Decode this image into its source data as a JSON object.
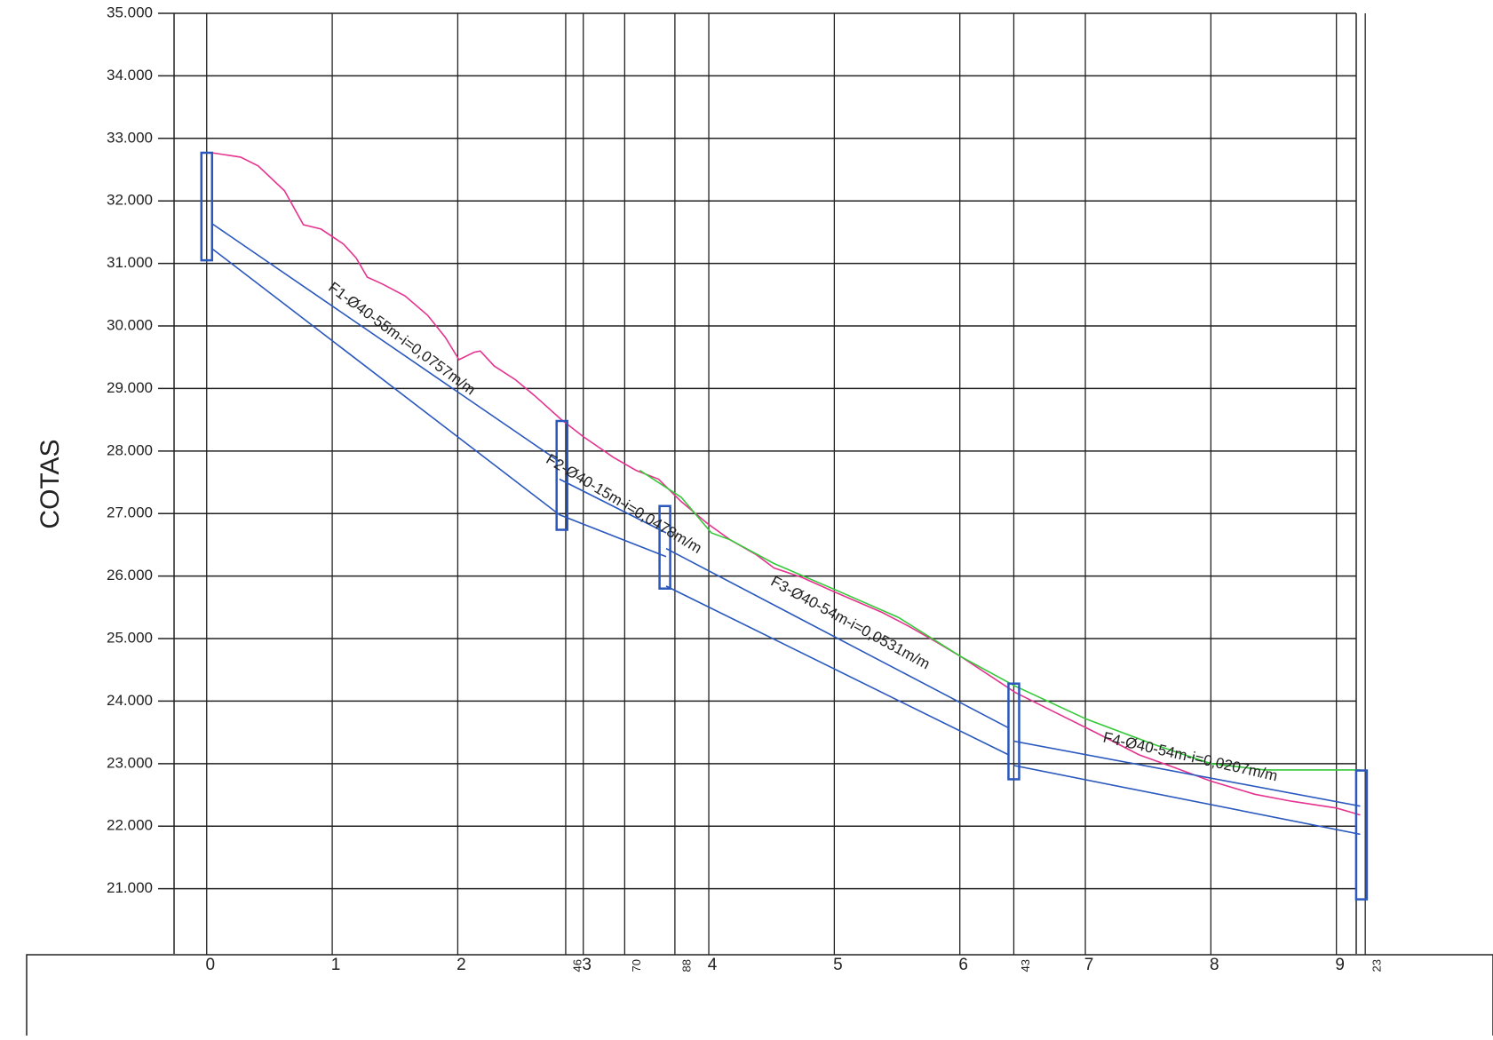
{
  "chart_data": {
    "type": "line",
    "y_label": "COTAS",
    "xlim": [
      -0.26,
      9.25
    ],
    "ylim": [
      20.1,
      35
    ],
    "xticks": [
      0,
      1,
      2,
      3,
      4,
      5,
      6,
      7,
      8,
      9
    ],
    "stations": [
      {
        "value": 2.86,
        "label": "46"
      },
      {
        "value": 3.33,
        "label": "70"
      },
      {
        "value": 3.73,
        "label": "88"
      },
      {
        "value": 6.43,
        "label": "43"
      },
      {
        "value": 9.23,
        "label": "23"
      }
    ],
    "yticks": [
      {
        "value": 21,
        "label": "21.000"
      },
      {
        "value": 22,
        "label": "22.000"
      },
      {
        "value": 23,
        "label": "23.000"
      },
      {
        "value": 24,
        "label": "24.000"
      },
      {
        "value": 25,
        "label": "25.000"
      },
      {
        "value": 26,
        "label": "26.000"
      },
      {
        "value": 27,
        "label": "27.000"
      },
      {
        "value": 28,
        "label": "28.000"
      },
      {
        "value": 29,
        "label": "29.000"
      },
      {
        "value": 30,
        "label": "30.000"
      },
      {
        "value": 31,
        "label": "31.000"
      },
      {
        "value": 32,
        "label": "32.000"
      },
      {
        "value": 33,
        "label": "33.000"
      },
      {
        "value": 34,
        "label": "34.000"
      },
      {
        "value": 35,
        "label": "35.000"
      }
    ],
    "grid": true,
    "series": [
      {
        "color": "#e5338f",
        "x": [
          0.04,
          0.27,
          0.41,
          0.62,
          0.77,
          0.91,
          1.09,
          1.19,
          1.28,
          1.4,
          1.58,
          1.76,
          1.9,
          2.01,
          2.13,
          2.18,
          2.29,
          2.46,
          2.61,
          2.82,
          3.0,
          3.24,
          3.42,
          3.6,
          3.78,
          3.99,
          4.17,
          4.38,
          4.52,
          4.74,
          5.02,
          5.38,
          5.59,
          5.8,
          6.01,
          6.23,
          6.44,
          6.72,
          7.08,
          7.43,
          7.72,
          8.0,
          8.35,
          8.64,
          9.0,
          9.19
        ],
        "values": [
          32.77,
          32.7,
          32.56,
          32.16,
          31.62,
          31.55,
          31.31,
          31.09,
          30.78,
          30.67,
          30.48,
          30.17,
          29.82,
          29.46,
          29.58,
          29.6,
          29.36,
          29.14,
          28.89,
          28.51,
          28.23,
          27.9,
          27.69,
          27.55,
          27.19,
          26.84,
          26.58,
          26.34,
          26.13,
          25.98,
          25.73,
          25.42,
          25.2,
          24.96,
          24.71,
          24.42,
          24.14,
          23.86,
          23.5,
          23.14,
          22.93,
          22.72,
          22.51,
          22.4,
          22.29,
          22.18
        ]
      },
      {
        "color": "#35c93a",
        "x": [
          3.45,
          3.78,
          4.02,
          4.17,
          4.52,
          5.02,
          5.51,
          6.01,
          6.44,
          7.01,
          7.57,
          8.0,
          8.43,
          9.19
        ],
        "values": [
          27.69,
          27.26,
          26.69,
          26.58,
          26.2,
          25.77,
          25.34,
          24.71,
          24.24,
          23.71,
          23.29,
          23.0,
          22.9,
          22.9
        ]
      },
      {
        "color": "#2a58bd",
        "x": [
          0.04,
          2.81
        ],
        "values": [
          31.64,
          27.83
        ]
      },
      {
        "color": "#2a58bd",
        "x": [
          0.04,
          2.81
        ],
        "values": [
          31.24,
          26.98
        ]
      },
      {
        "color": "#2a58bd",
        "x": [
          2.81,
          3.66
        ],
        "values": [
          27.55,
          26.69
        ]
      },
      {
        "color": "#2a58bd",
        "x": [
          2.81,
          3.66
        ],
        "values": [
          26.98,
          26.31
        ]
      },
      {
        "color": "#2a58bd",
        "x": [
          3.66,
          6.39
        ],
        "values": [
          26.44,
          23.57
        ]
      },
      {
        "color": "#2a58bd",
        "x": [
          3.66,
          6.39
        ],
        "values": [
          25.84,
          23.14
        ]
      },
      {
        "color": "#2a58bd",
        "x": [
          6.43,
          9.19
        ],
        "values": [
          23.36,
          22.32
        ]
      },
      {
        "color": "#2a58bd",
        "x": [
          6.43,
          9.19
        ],
        "values": [
          22.97,
          21.87
        ]
      }
    ],
    "manholes": [
      {
        "x": 0.0,
        "top": 32.77,
        "bottom": 31.05
      },
      {
        "x": 2.83,
        "top": 28.48,
        "bottom": 26.74
      },
      {
        "x": 3.65,
        "top": 27.12,
        "bottom": 25.8
      },
      {
        "x": 6.43,
        "top": 24.28,
        "bottom": 22.75
      },
      {
        "x": 9.2,
        "top": 22.89,
        "bottom": 20.83
      }
    ],
    "manhole_color": "#2a58bd",
    "annotations": [
      "F1-Ø40-55m-i=0,0757m/m",
      "F2-Ø40-15m-i=0,0478m/m",
      "F3-Ø40-54m-i=0,0531m/m",
      "F4-Ø40-54m-i=0,0207m/m"
    ]
  }
}
